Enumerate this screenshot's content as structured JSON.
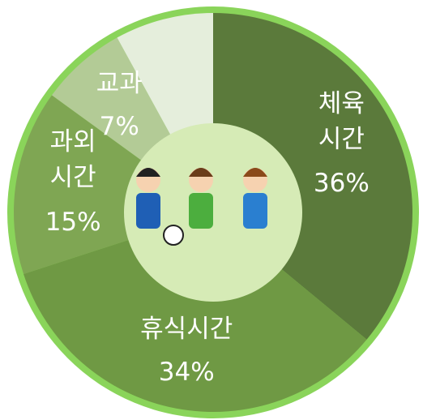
{
  "chart_data": {
    "type": "donut",
    "categories": [
      "체육\n시간",
      "휴식시간",
      "과외\n시간",
      "교과",
      null
    ],
    "values": [
      36,
      34,
      15,
      7,
      8
    ],
    "value_labels": [
      "36%",
      "34%",
      "15%",
      "7%",
      null
    ],
    "colors": [
      "#5b7a3b",
      "#6f9944",
      "#7fa653",
      "#b3cb96",
      "#e5eedc"
    ],
    "start_angle": 0,
    "direction": "clockwise"
  }
}
